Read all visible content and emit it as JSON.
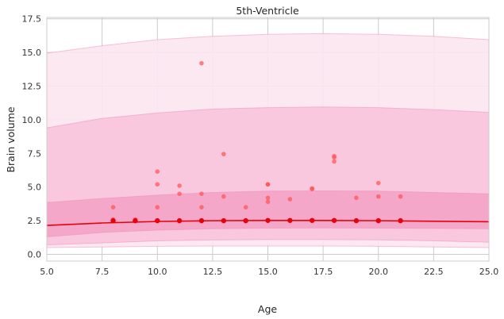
{
  "chart_data": {
    "type": "scatter",
    "title": "5th-Ventricle",
    "xlabel": "Age",
    "ylabel": "Brain volume",
    "xlim": [
      5,
      25
    ],
    "ylim": [
      -0.5,
      17.6
    ],
    "xticks": [
      5.0,
      7.5,
      10.0,
      12.5,
      15.0,
      17.5,
      20.0,
      22.5,
      25.0
    ],
    "xtick_labels": [
      "5.0",
      "7.5",
      "10.0",
      "12.5",
      "15.0",
      "17.5",
      "20.0",
      "22.5",
      "25.0"
    ],
    "yticks": [
      0.0,
      2.5,
      5.0,
      7.5,
      10.0,
      12.5,
      15.0,
      17.5
    ],
    "ytick_labels": [
      "0.0",
      "2.5",
      "5.0",
      "7.5",
      "10.0",
      "12.5",
      "15.0",
      "17.5"
    ],
    "grid": true,
    "colors": {
      "median_line": "#e8000b",
      "observed_points": "#ff5050",
      "mean_points": "#e8000b",
      "band_inner": "#f4a3c8",
      "band_middle": "#f9c4dc",
      "band_outer": "#fce6f0",
      "grid": "#cccccc"
    },
    "series": [
      {
        "kind": "line",
        "x": [
          5,
          7.5,
          10,
          12.5,
          15,
          17.5,
          20,
          22.5,
          25
        ],
        "y": [
          2.15,
          2.33,
          2.44,
          2.5,
          2.52,
          2.52,
          2.5,
          2.46,
          2.42
        ]
      },
      {
        "kind": "band",
        "x": [
          5,
          7.5,
          10,
          12.5,
          15,
          17.5,
          20,
          22.5,
          25
        ],
        "lower": [
          1.3,
          1.62,
          1.8,
          1.9,
          1.95,
          1.96,
          1.95,
          1.93,
          1.9
        ],
        "upper": [
          3.85,
          4.15,
          4.4,
          4.6,
          4.7,
          4.72,
          4.7,
          4.6,
          4.5
        ]
      },
      {
        "kind": "band",
        "x": [
          5,
          7.5,
          10,
          12.5,
          15,
          17.5,
          20,
          22.5,
          25
        ],
        "lower": [
          0.7,
          0.85,
          1.0,
          1.07,
          1.1,
          1.1,
          1.08,
          1.0,
          0.9
        ],
        "upper": [
          9.4,
          10.1,
          10.5,
          10.8,
          10.9,
          10.95,
          10.9,
          10.75,
          10.55
        ]
      },
      {
        "kind": "band",
        "x": [
          5,
          7.5,
          10,
          12.5,
          15,
          17.5,
          20,
          22.5,
          25
        ],
        "lower": [
          0.5,
          0.55,
          0.6,
          0.62,
          0.62,
          0.62,
          0.6,
          0.55,
          0.5
        ],
        "upper": [
          14.95,
          15.5,
          15.95,
          16.2,
          16.35,
          16.4,
          16.35,
          16.2,
          15.95
        ]
      },
      {
        "kind": "scatter",
        "x": [
          8,
          8,
          9,
          10,
          10,
          10,
          11,
          11,
          12,
          12,
          12,
          13,
          13,
          14,
          15,
          15,
          15,
          15,
          16,
          17,
          17,
          18,
          18,
          18,
          19,
          20,
          20,
          21
        ],
        "y": [
          2.6,
          3.5,
          2.6,
          6.15,
          5.2,
          3.5,
          5.1,
          4.5,
          14.2,
          4.5,
          3.5,
          7.45,
          4.3,
          3.5,
          5.2,
          4.2,
          3.9,
          5.2,
          4.1,
          4.85,
          4.9,
          7.3,
          7.2,
          6.9,
          4.2,
          5.3,
          4.3,
          4.3
        ]
      },
      {
        "kind": "scatter_mean",
        "x": [
          8,
          9,
          10,
          11,
          12,
          13,
          14,
          15,
          16,
          17,
          18,
          19,
          20,
          21
        ],
        "y": [
          2.5,
          2.5,
          2.5,
          2.5,
          2.5,
          2.5,
          2.5,
          2.52,
          2.52,
          2.52,
          2.52,
          2.5,
          2.5,
          2.5
        ]
      }
    ]
  }
}
